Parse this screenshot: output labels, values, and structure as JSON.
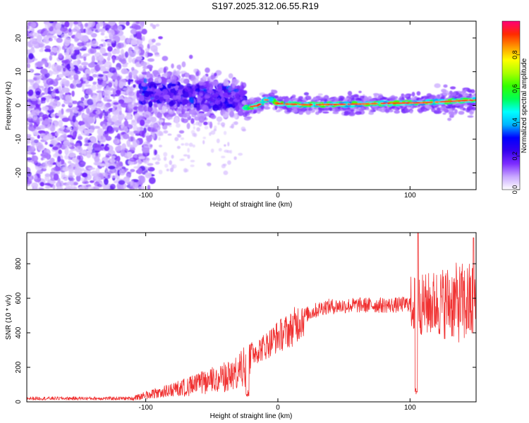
{
  "title": "S197.2025.312.06.55.R19",
  "chart_data": [
    {
      "type": "heatmap",
      "name": "spectrogram",
      "xlabel": "Height of straight line (km)",
      "ylabel": "Frequency (Hz)",
      "xlim": [
        -190,
        150
      ],
      "ylim": [
        -25,
        25
      ],
      "xticks": [
        -100,
        0,
        100
      ],
      "yticks": [
        -20,
        -10,
        0,
        10,
        20
      ],
      "grid": false,
      "colorbar": {
        "label": "Normalized spectral amplitude",
        "range": [
          0,
          1
        ],
        "ticks": [
          0.0,
          0.2,
          0.4,
          0.6,
          0.8
        ],
        "tick_labels": [
          "0.0",
          "0.2",
          "0.4",
          "0.6",
          "0.8"
        ],
        "colormap": [
          "#ffffff",
          "#c9a8ff",
          "#7d2cff",
          "#3300ee",
          "#0000ff",
          "#00b4ff",
          "#00ffff",
          "#00ff55",
          "#33ff00",
          "#aaff00",
          "#ffff00",
          "#ff9900",
          "#ff2a00",
          "#ff0077"
        ]
      },
      "features": {
        "noise_region_x": [
          -190,
          -105
        ],
        "noise_band_hz": [
          -25,
          25
        ],
        "transition_region_x": [
          -105,
          -25
        ],
        "transition_center_hz": 4,
        "ridge_x": [
          -25,
          150
        ],
        "ridge_path": [
          [
            -28,
            -1
          ],
          [
            -15,
            0
          ],
          [
            -10,
            1.5
          ],
          [
            -5,
            2
          ],
          [
            0,
            0.5
          ],
          [
            20,
            0.2
          ],
          [
            50,
            0.3
          ],
          [
            80,
            0.6
          ],
          [
            110,
            0.8
          ],
          [
            130,
            1.2
          ],
          [
            150,
            1.6
          ]
        ],
        "ridge_peak_amplitude": 0.95
      }
    },
    {
      "type": "line",
      "name": "snr",
      "xlabel": "Height of straight line (km)",
      "ylabel": "SNR (10 * v/v)",
      "xlim": [
        -190,
        150
      ],
      "ylim": [
        0,
        980
      ],
      "xticks": [
        -100,
        0,
        100
      ],
      "yticks": [
        0,
        200,
        400,
        600,
        800
      ],
      "grid": false,
      "series": [
        {
          "name": "SNR",
          "color": "#f03030",
          "envelope": [
            [
              -190,
              20
            ],
            [
              -110,
              20
            ],
            [
              -100,
              40
            ],
            [
              -80,
              70
            ],
            [
              -60,
              110
            ],
            [
              -45,
              140
            ],
            [
              -30,
              170
            ],
            [
              -20,
              280
            ],
            [
              -10,
              320
            ],
            [
              0,
              380
            ],
            [
              10,
              420
            ],
            [
              20,
              500
            ],
            [
              35,
              550
            ],
            [
              60,
              560
            ],
            [
              90,
              560
            ],
            [
              100,
              570
            ],
            [
              110,
              560
            ],
            [
              130,
              580
            ],
            [
              150,
              560
            ]
          ],
          "dropouts": [
            [
              -23,
              30
            ],
            [
              105,
              40
            ]
          ],
          "spikes": [
            [
              106,
              980
            ],
            [
              148,
              950
            ]
          ]
        }
      ]
    }
  ]
}
